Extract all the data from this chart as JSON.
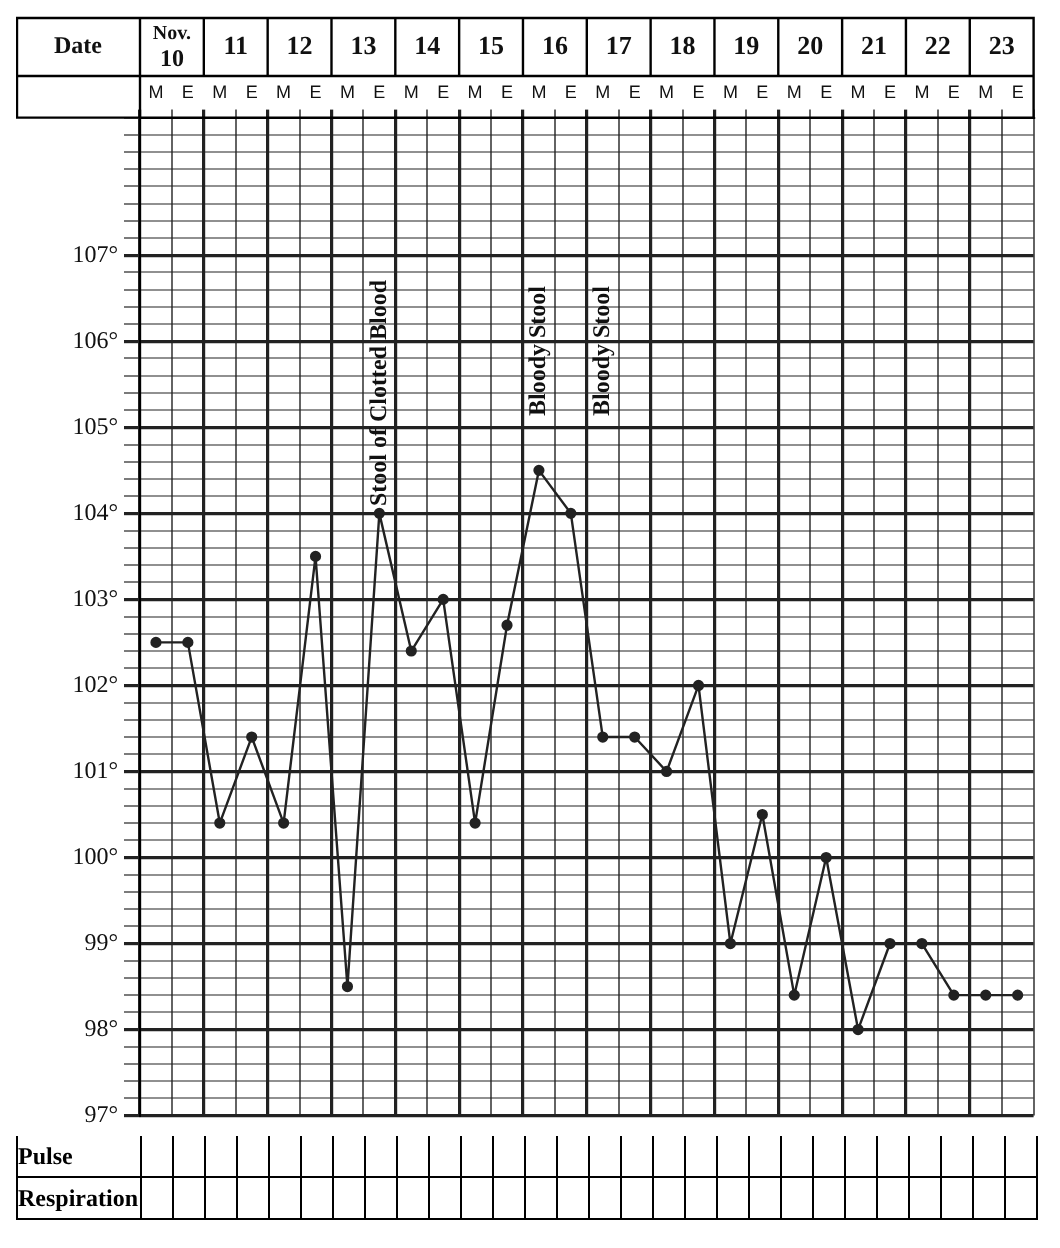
{
  "chart_data": {
    "type": "line",
    "xlabel": "Date",
    "categories": [
      "M",
      "E",
      "M",
      "E",
      "M",
      "E",
      "M",
      "E",
      "M",
      "E",
      "M",
      "E",
      "M",
      "E",
      "M",
      "E",
      "M",
      "E",
      "M",
      "E",
      "M",
      "E",
      "M",
      "E",
      "M",
      "E",
      "M",
      "E"
    ],
    "series": [
      {
        "color": "#222222",
        "values": [
          102.5,
          102.5,
          100.4,
          101.4,
          100.4,
          103.5,
          98.5,
          104.0,
          102.4,
          103.0,
          100.4,
          102.7,
          104.5,
          104.0,
          101.4,
          101.4,
          101.0,
          102.0,
          99.0,
          100.5,
          98.4,
          100.0,
          98.0,
          99.0,
          99.0,
          98.4,
          98.4,
          98.4
        ]
      }
    ],
    "ylim": [
      97,
      108.6
    ],
    "yticks": [
      {
        "value": 97,
        "label": "97°"
      },
      {
        "value": 97.2,
        "label": null
      },
      {
        "value": 97.4,
        "label": null
      },
      {
        "value": 97.6,
        "label": null
      },
      {
        "value": 97.8,
        "label": null
      },
      {
        "value": 98,
        "label": "98°"
      },
      {
        "value": 98.2,
        "label": null
      },
      {
        "value": 98.4,
        "label": null
      },
      {
        "value": 98.6,
        "label": null
      },
      {
        "value": 98.8,
        "label": null
      },
      {
        "value": 99,
        "label": "99°"
      },
      {
        "value": 99.2,
        "label": null
      },
      {
        "value": 99.4,
        "label": null
      },
      {
        "value": 99.6,
        "label": null
      },
      {
        "value": 99.8,
        "label": null
      },
      {
        "value": 100,
        "label": "100°"
      },
      {
        "value": 100.2,
        "label": null
      },
      {
        "value": 100.4,
        "label": null
      },
      {
        "value": 100.6,
        "label": null
      },
      {
        "value": 100.8,
        "label": null
      },
      {
        "value": 101,
        "label": "101°"
      },
      {
        "value": 101.2,
        "label": null
      },
      {
        "value": 101.4,
        "label": null
      },
      {
        "value": 101.6,
        "label": null
      },
      {
        "value": 101.8,
        "label": null
      },
      {
        "value": 102,
        "label": "102°"
      },
      {
        "value": 102.2,
        "label": null
      },
      {
        "value": 102.4,
        "label": null
      },
      {
        "value": 102.6,
        "label": null
      },
      {
        "value": 102.8,
        "label": null
      },
      {
        "value": 103,
        "label": "103°"
      },
      {
        "value": 103.2,
        "label": null
      },
      {
        "value": 103.4,
        "label": null
      },
      {
        "value": 103.6,
        "label": null
      },
      {
        "value": 103.8,
        "label": null
      },
      {
        "value": 104,
        "label": "104°"
      },
      {
        "value": 104.2,
        "label": null
      },
      {
        "value": 104.4,
        "label": null
      },
      {
        "value": 104.6,
        "label": null
      },
      {
        "value": 104.8,
        "label": null
      },
      {
        "value": 105,
        "label": "105°"
      },
      {
        "value": 105.2,
        "label": null
      },
      {
        "value": 105.4,
        "label": null
      },
      {
        "value": 105.6,
        "label": null
      },
      {
        "value": 105.8,
        "label": null
      },
      {
        "value": 106,
        "label": "106°"
      },
      {
        "value": 106.2,
        "label": null
      },
      {
        "value": 106.4,
        "label": null
      },
      {
        "value": 106.6,
        "label": null
      },
      {
        "value": 106.8,
        "label": null
      },
      {
        "value": 107,
        "label": "107°"
      },
      {
        "value": 107.2,
        "label": null
      },
      {
        "value": 107.4,
        "label": null
      },
      {
        "value": 107.6,
        "label": null
      },
      {
        "value": 107.8,
        "label": null
      },
      {
        "value": 108,
        "label": null
      },
      {
        "value": 108.2,
        "label": null
      },
      {
        "value": 108.4,
        "label": null
      },
      {
        "value": 108.6,
        "label": null
      }
    ],
    "grid": true,
    "marker": "circle",
    "line_style": "solid",
    "annotations": [
      "Nov. 10",
      "11",
      "12",
      "13",
      "14",
      "15",
      "16",
      "17",
      "18",
      "19",
      "20",
      "21",
      "22",
      "23",
      "Stool of Clotted Blood",
      "Bloody Stool",
      "Bloody Stool",
      "Pulse",
      "Respiration"
    ]
  }
}
